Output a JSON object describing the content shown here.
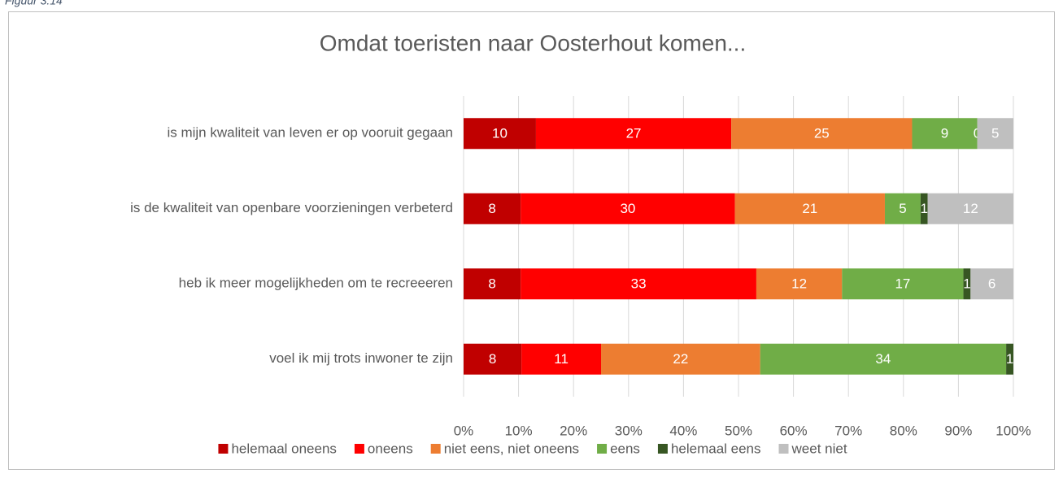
{
  "figure_label": "Figuur 3.14",
  "chart_data": {
    "type": "bar",
    "orientation": "horizontal",
    "stacking": "percent",
    "title": "Omdat toeristen naar Oosterhout komen...",
    "categories": [
      "is mijn kwaliteit van leven er op vooruit gegaan",
      "is de kwaliteit van openbare voorzieningen verbeterd",
      "heb ik meer mogelijkheden om te recreeeren",
      "voel ik mij trots inwoner te zijn"
    ],
    "series": [
      {
        "name": "helemaal oneens",
        "color": "#c00000",
        "values": [
          10,
          8,
          8,
          8
        ]
      },
      {
        "name": "oneens",
        "color": "#ff0000",
        "values": [
          27,
          30,
          33,
          11
        ]
      },
      {
        "name": "niet eens, niet oneens",
        "color": "#ed7d31",
        "values": [
          25,
          21,
          12,
          22
        ]
      },
      {
        "name": "eens",
        "color": "#70ad47",
        "values": [
          9,
          5,
          17,
          34
        ]
      },
      {
        "name": "helemaal eens",
        "color": "#375623",
        "values": [
          0,
          1,
          1,
          1
        ]
      },
      {
        "name": "weet niet",
        "color": "#bfbfbf",
        "values": [
          5,
          12,
          6,
          null
        ]
      }
    ],
    "xlim": [
      0,
      100
    ],
    "xticks": [
      {
        "value": 0,
        "label": "0%"
      },
      {
        "value": 10,
        "label": "10%"
      },
      {
        "value": 20,
        "label": "20%"
      },
      {
        "value": 30,
        "label": "30%"
      },
      {
        "value": 40,
        "label": "40%"
      },
      {
        "value": 50,
        "label": "50%"
      },
      {
        "value": 60,
        "label": "60%"
      },
      {
        "value": 70,
        "label": "70%"
      },
      {
        "value": 80,
        "label": "80%"
      },
      {
        "value": 90,
        "label": "90%"
      },
      {
        "value": 100,
        "label": "100%"
      }
    ],
    "grid": true,
    "legend": "bottom",
    "data_labels": true
  }
}
